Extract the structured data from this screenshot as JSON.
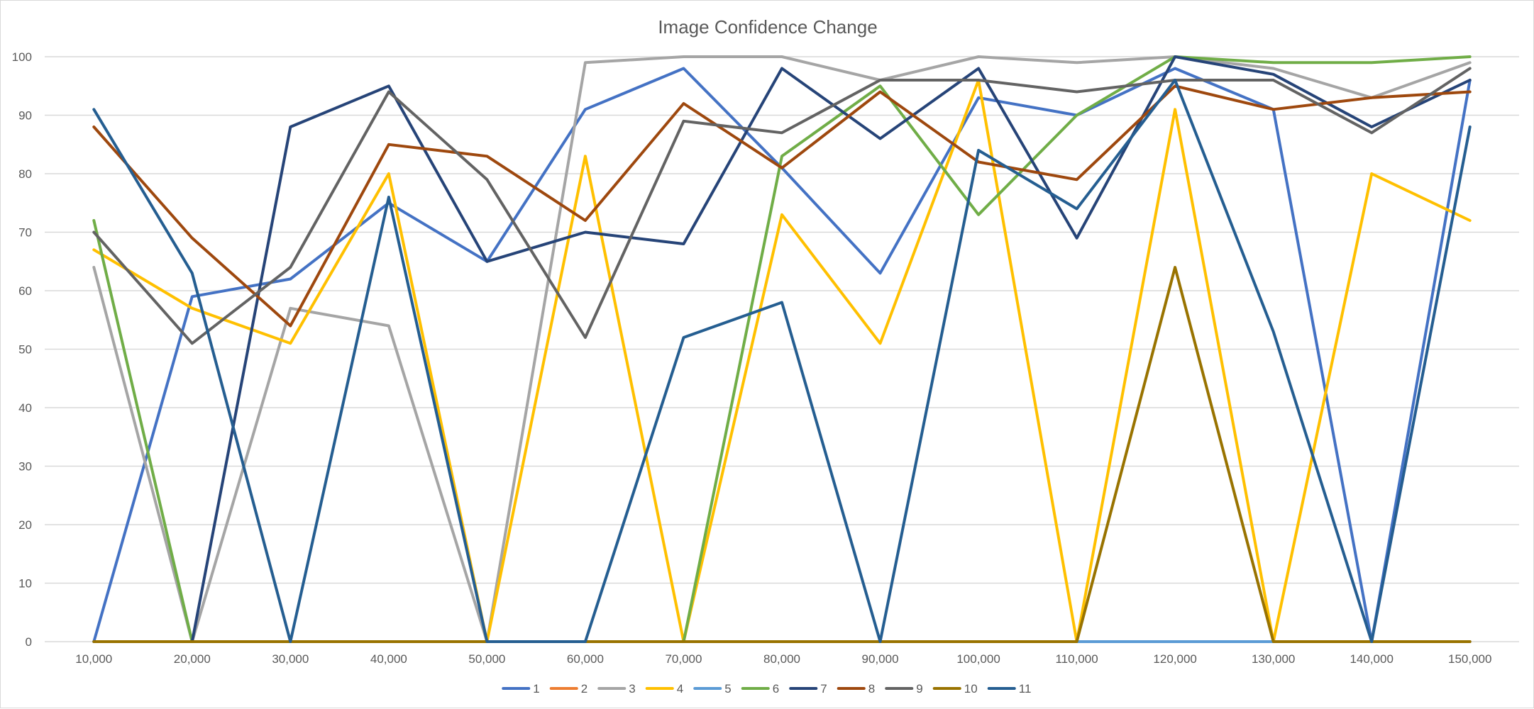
{
  "chart_data": {
    "type": "line",
    "title": "Image Confidence Change",
    "xlabel": "",
    "ylabel": "",
    "ylim": [
      0,
      100
    ],
    "yticks": [
      0,
      10,
      20,
      30,
      40,
      50,
      60,
      70,
      80,
      90,
      100
    ],
    "categories": [
      "10,000",
      "20,000",
      "30,000",
      "40,000",
      "50,000",
      "60,000",
      "70,000",
      "80,000",
      "90,000",
      "100,000",
      "110,000",
      "120,000",
      "130,000",
      "140,000",
      "150,000"
    ],
    "grid": true,
    "legend_position": "bottom",
    "series": [
      {
        "name": "1",
        "color": "#4472C4",
        "values": [
          0,
          59,
          62,
          75,
          65,
          91,
          98,
          81,
          63,
          93,
          90,
          98,
          91,
          0,
          96
        ]
      },
      {
        "name": "2",
        "color": "#ED7D31",
        "values": [
          0,
          0,
          0,
          0,
          0,
          0,
          0,
          0,
          0,
          0,
          0,
          0,
          0,
          0,
          0
        ]
      },
      {
        "name": "3",
        "color": "#A5A5A5",
        "values": [
          64,
          0,
          57,
          54,
          0,
          99,
          100,
          100,
          96,
          100,
          99,
          100,
          98,
          93,
          99
        ]
      },
      {
        "name": "4",
        "color": "#FFC000",
        "values": [
          67,
          57,
          51,
          80,
          0,
          83,
          0,
          73,
          51,
          96,
          0,
          91,
          0,
          80,
          72
        ]
      },
      {
        "name": "5",
        "color": "#5B9BD5",
        "values": [
          0,
          0,
          0,
          0,
          0,
          0,
          0,
          0,
          0,
          0,
          0,
          0,
          0,
          0,
          0
        ]
      },
      {
        "name": "6",
        "color": "#70AD47",
        "values": [
          72,
          0,
          0,
          0,
          0,
          0,
          0,
          83,
          95,
          73,
          90,
          100,
          99,
          99,
          100
        ]
      },
      {
        "name": "7",
        "color": "#264478",
        "values": [
          0,
          0,
          88,
          95,
          65,
          70,
          68,
          98,
          86,
          98,
          69,
          100,
          97,
          88,
          96
        ]
      },
      {
        "name": "8",
        "color": "#9E480E",
        "values": [
          88,
          69,
          54,
          85,
          83,
          72,
          92,
          81,
          94,
          82,
          79,
          95,
          91,
          93,
          94
        ]
      },
      {
        "name": "9",
        "color": "#636363",
        "values": [
          70,
          51,
          64,
          94,
          79,
          52,
          89,
          87,
          96,
          96,
          94,
          96,
          96,
          87,
          98
        ]
      },
      {
        "name": "10",
        "color": "#997300",
        "values": [
          0,
          0,
          0,
          0,
          0,
          0,
          0,
          0,
          0,
          0,
          0,
          64,
          0,
          0,
          0
        ]
      },
      {
        "name": "11",
        "color": "#255E91",
        "values": [
          91,
          63,
          0,
          76,
          0,
          0,
          52,
          58,
          0,
          84,
          74,
          96,
          53,
          0,
          88
        ]
      }
    ]
  }
}
